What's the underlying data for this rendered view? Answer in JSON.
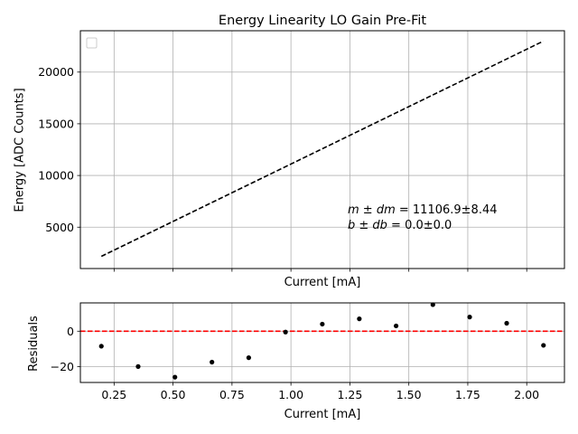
{
  "chart_data": [
    {
      "type": "line",
      "title": "Energy Linearity LO Gain Pre-Fit",
      "xlabel": "Current [mA]",
      "ylabel": "Energy [ADC Counts]",
      "xlim": [
        0.107,
        2.16
      ],
      "ylim": [
        1000,
        24000
      ],
      "yticks": [
        5000,
        10000,
        15000,
        20000
      ],
      "x_tick_labels_shown": false,
      "grid": true,
      "legend": {
        "placement": "top-left",
        "entries": []
      },
      "series": [
        {
          "style": "dashed",
          "color": "#000000",
          "x": [
            0.196,
            2.07
          ],
          "y": [
            2180,
            22990
          ]
        }
      ],
      "annotation": {
        "line1_label": "m ± dm",
        "line1_value": " = 11106.9±8.44",
        "line2_label": "b ± db",
        "line2_value": " = 0.0±0.0"
      }
    },
    {
      "type": "scatter",
      "xlabel": "Current [mA]",
      "ylabel": "Residuals",
      "xlim": [
        0.107,
        2.16
      ],
      "ylim": [
        -29,
        16
      ],
      "xticks": [
        0.25,
        0.5,
        0.75,
        1.0,
        1.25,
        1.5,
        1.75,
        2.0
      ],
      "xtick_labels": [
        "0.25",
        "0.50",
        "0.75",
        "1.00",
        "1.25",
        "1.50",
        "1.75",
        "2.00"
      ],
      "yticks": [
        -20,
        0
      ],
      "ytick_labels": [
        "−20",
        "0"
      ],
      "grid": true,
      "reference_line": {
        "y": 0,
        "color": "#ff0000",
        "style": "dashed"
      },
      "points": {
        "color": "#000000",
        "x": [
          0.196,
          0.352,
          0.508,
          0.665,
          0.821,
          0.977,
          1.133,
          1.29,
          1.446,
          1.602,
          1.758,
          1.915,
          2.071
        ],
        "y": [
          -8.5,
          -20,
          -26,
          -17.5,
          -15,
          -0.5,
          4,
          7,
          3,
          15,
          8,
          4.5,
          -8
        ]
      }
    }
  ]
}
